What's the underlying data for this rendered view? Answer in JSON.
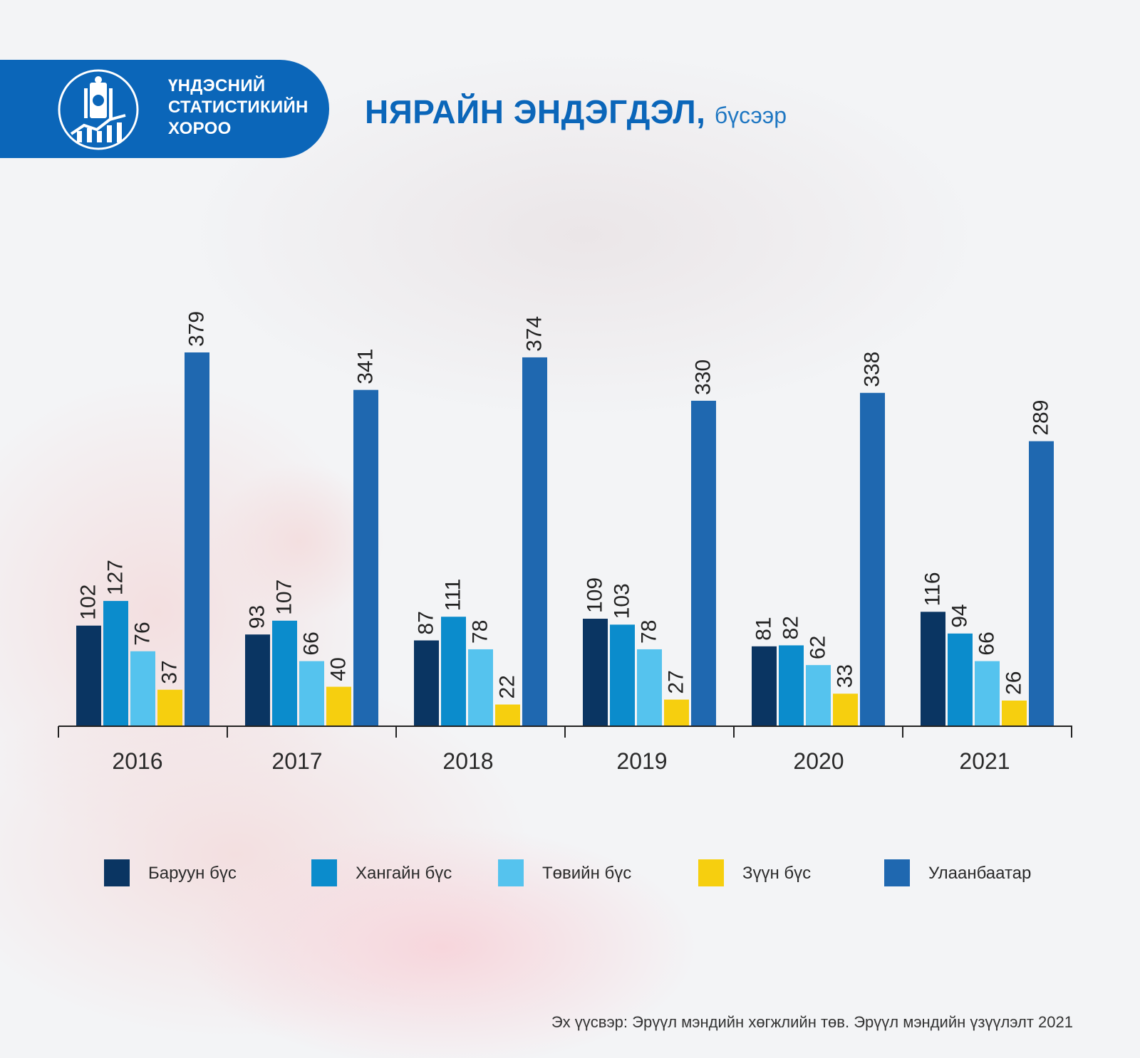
{
  "logo": {
    "line1": "ҮНДЭСНИЙ",
    "line2": "СТАТИСТИКИЙН",
    "line3": "ХОРОО"
  },
  "header": {
    "title": "НЯРАЙН ЭНДЭГДЭЛ,",
    "subtitle": "бүсээр"
  },
  "colors": {
    "brand": "#0b66b9",
    "series": [
      "#0a3562",
      "#0b8ccc",
      "#55c3ee",
      "#f6cf0f",
      "#1f68b0"
    ]
  },
  "chart_data": {
    "type": "bar",
    "title": "НЯРАЙН ЭНДЭГДЭЛ, бүсээр",
    "categories": [
      "2016",
      "2017",
      "2018",
      "2019",
      "2020",
      "2021"
    ],
    "series": [
      {
        "name": "Баруун бүс",
        "values": [
          102,
          93,
          87,
          109,
          81,
          116
        ]
      },
      {
        "name": "Хангайн бүс",
        "values": [
          127,
          107,
          111,
          103,
          82,
          94
        ]
      },
      {
        "name": "Төвийн бүс",
        "values": [
          76,
          66,
          78,
          78,
          62,
          66
        ]
      },
      {
        "name": "Зүүн бүс",
        "values": [
          37,
          40,
          22,
          27,
          33,
          26
        ]
      },
      {
        "name": "Улаанбаатар",
        "values": [
          379,
          341,
          374,
          330,
          338,
          289
        ]
      }
    ],
    "ylim": [
      0,
      379
    ],
    "grid": false,
    "legend_position": "bottom",
    "data_labels": "rotated"
  },
  "source": "Эх үүсвэр: Эрүүл мэндийн хөгжлийн төв. Эрүүл мэндийн үзүүлэлт 2021"
}
